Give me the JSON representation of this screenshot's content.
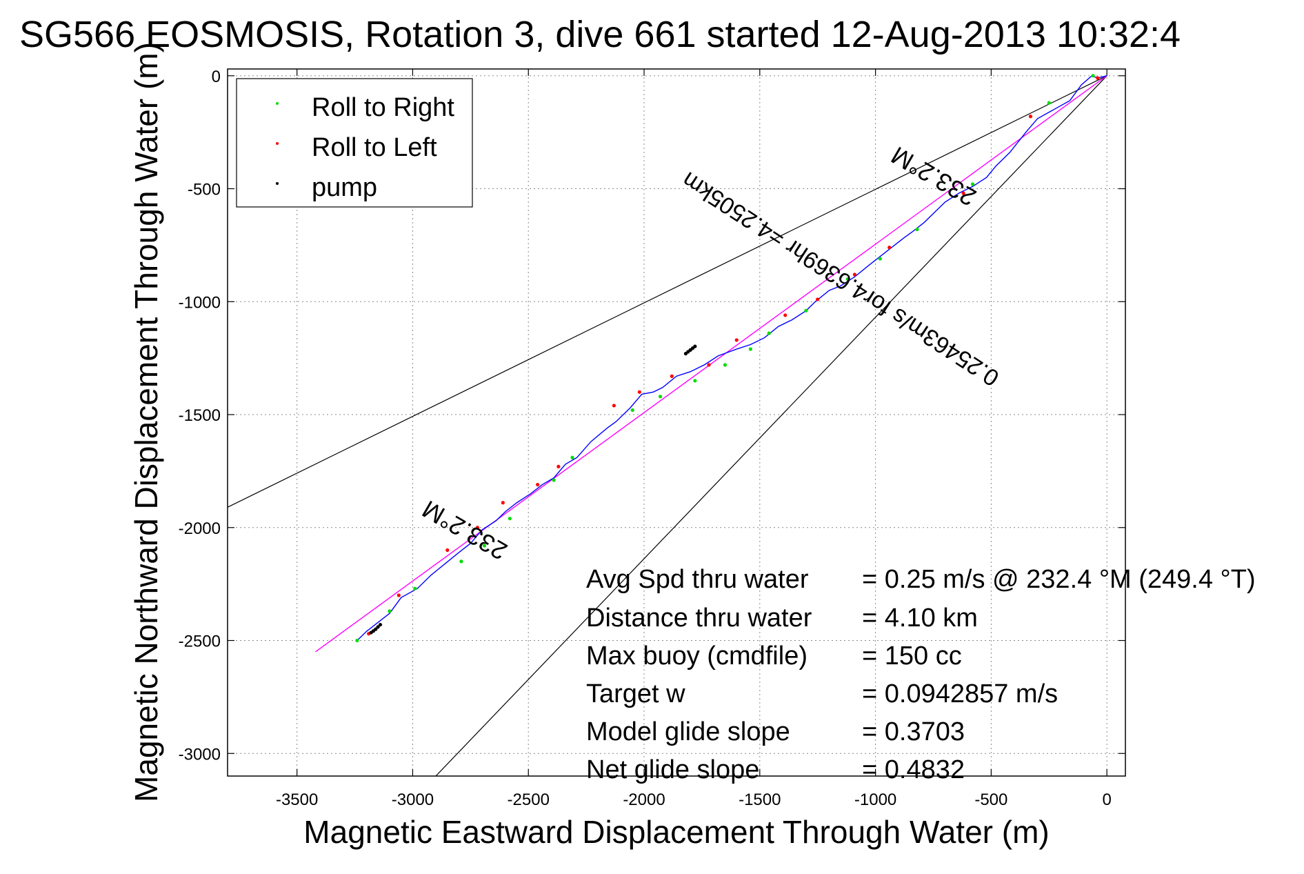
{
  "chart_data": {
    "type": "line",
    "title": "SG566 EOSMOSIS, Rotation 3, dive 661 started 12-Aug-2013 10:32:4",
    "xlabel": "Magnetic Eastward Displacement Through Water (m)",
    "ylabel": "Magnetic Northward Displacement Through Water (m)",
    "xlim": [
      -3800,
      80
    ],
    "ylim": [
      -3100,
      30
    ],
    "grid": true,
    "x_ticks": [
      -3500,
      -3000,
      -2500,
      -2000,
      -1500,
      -1000,
      -500,
      0
    ],
    "x_tick_labels": [
      "-3500",
      "-3000",
      "-2500",
      "-2000",
      "-1500",
      "-1000",
      "-500",
      "0"
    ],
    "y_ticks": [
      0,
      -500,
      -1000,
      -1500,
      -2000,
      -2500,
      -3000
    ],
    "y_tick_labels": [
      "0",
      "-500",
      "-1000",
      "-1500",
      "-2000",
      "-2500",
      "-3000"
    ],
    "legend": {
      "placement": "top-left",
      "entries": [
        {
          "label": "Roll to Right",
          "color": "#00dd00"
        },
        {
          "label": "Roll to Left",
          "color": "#ff0000"
        },
        {
          "label": "pump",
          "color": "#000000"
        }
      ]
    },
    "colors": {
      "track": "#0000ff",
      "avg_line": "#ff00ff",
      "cone": "#000000",
      "roll_right": "#00dd00",
      "roll_left": "#ff0000",
      "pump": "#000000"
    },
    "track": {
      "x": [
        0,
        -40,
        -65,
        -110,
        -160,
        -230,
        -300,
        -350,
        -420,
        -480,
        -520,
        -580,
        -640,
        -700,
        -740,
        -790,
        -840,
        -880,
        -930,
        -980,
        -1030,
        -1090,
        -1150,
        -1200,
        -1260,
        -1300,
        -1360,
        -1420,
        -1480,
        -1540,
        -1600,
        -1680,
        -1740,
        -1800,
        -1860,
        -1920,
        -1960,
        -2010,
        -2060,
        -2120,
        -2160,
        -2230,
        -2290,
        -2340,
        -2390,
        -2440,
        -2490,
        -2550,
        -2600,
        -2640,
        -2700,
        -2750,
        -2800,
        -2860,
        -2920,
        -2980,
        -3050,
        -3100,
        -3150,
        -3200,
        -3240
      ],
      "y": [
        0,
        -10,
        0,
        -40,
        -110,
        -150,
        -190,
        -250,
        -340,
        -400,
        -450,
        -490,
        -520,
        -560,
        -600,
        -650,
        -690,
        -720,
        -760,
        -800,
        -840,
        -890,
        -930,
        -950,
        -1000,
        -1040,
        -1080,
        -1110,
        -1160,
        -1190,
        -1210,
        -1240,
        -1280,
        -1310,
        -1330,
        -1380,
        -1400,
        -1410,
        -1470,
        -1530,
        -1560,
        -1620,
        -1690,
        -1720,
        -1780,
        -1810,
        -1850,
        -1890,
        -1930,
        -1970,
        -2010,
        -2070,
        -2110,
        -2160,
        -2210,
        -2270,
        -2310,
        -2380,
        -2420,
        -2460,
        -2500
      ]
    },
    "roll_right": {
      "x": [
        -60,
        -250,
        -580,
        -820,
        -980,
        -1120,
        -1300,
        -1460,
        -1540,
        -1650,
        -1780,
        -1930,
        -2050,
        -2310,
        -2390,
        -2580,
        -2690,
        -2790,
        -2990,
        -3100,
        -3240
      ],
      "y": [
        0,
        -120,
        -480,
        -680,
        -810,
        -900,
        -1040,
        -1140,
        -1210,
        -1280,
        -1350,
        -1420,
        -1480,
        -1690,
        -1790,
        -1960,
        -2080,
        -2150,
        -2270,
        -2370,
        -2500
      ]
    },
    "roll_left": {
      "x": [
        -40,
        -330,
        -620,
        -940,
        -1090,
        -1250,
        -1390,
        -1600,
        -1720,
        -1880,
        -2020,
        -2130,
        -2370,
        -2460,
        -2610,
        -2720,
        -2850,
        -3060,
        -3190
      ],
      "y": [
        -10,
        -180,
        -520,
        -760,
        -880,
        -990,
        -1060,
        -1170,
        -1280,
        -1330,
        -1400,
        -1460,
        -1730,
        -1810,
        -1890,
        -2000,
        -2100,
        -2300,
        -2470
      ]
    },
    "pump": {
      "x": [
        -1820,
        -1810,
        -1800,
        -1790,
        -1780,
        -3140,
        -3150,
        -3160,
        -3170,
        -3180
      ],
      "y": [
        -1230,
        -1222,
        -1214,
        -1206,
        -1198,
        -2430,
        -2440,
        -2450,
        -2458,
        -2465
      ]
    },
    "avg_line": {
      "x": [
        0,
        -3420
      ],
      "y": [
        0,
        -2550
      ]
    },
    "cone_lines": [
      {
        "x": [
          0,
          -3800
        ],
        "y": [
          0,
          -1910
        ]
      },
      {
        "x": [
          0,
          -2900
        ],
        "y": [
          0,
          -3100
        ]
      }
    ],
    "annotations": {
      "heading_upper": "233.2°M",
      "heading_lower": "233.2°M",
      "along_track": "0.25463m/s for4.6369hr =4.2505km"
    },
    "stats": [
      {
        "label": "Avg Spd thru water",
        "value": "=  0.25 m/s @ 232.4 °M (249.4 °T)"
      },
      {
        "label": "Distance thru water",
        "value": "=  4.10 km"
      },
      {
        "label": "Max buoy (cmdfile)",
        "value": "= 150 cc"
      },
      {
        "label": "Target w",
        "value": "= 0.0942857 m/s"
      },
      {
        "label": "Model glide slope",
        "value": "= 0.3703"
      },
      {
        "label": "Net glide slope",
        "value": "= 0.4832"
      }
    ]
  }
}
